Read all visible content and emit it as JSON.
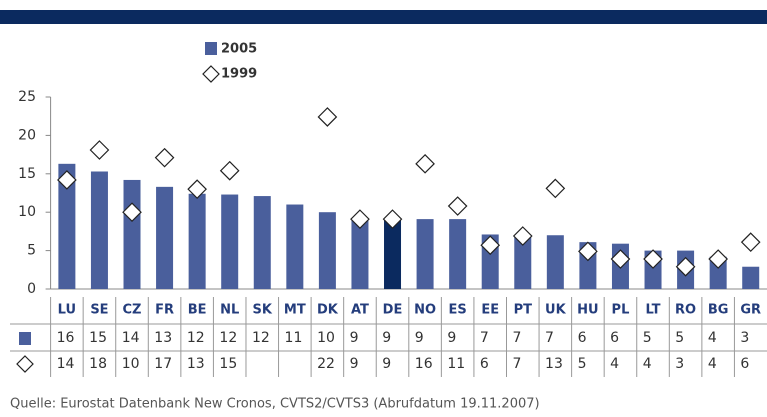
{
  "chart_data": {
    "type": "bar",
    "categories": [
      "LU",
      "SE",
      "CZ",
      "FR",
      "BE",
      "NL",
      "SK",
      "MT",
      "DK",
      "AT",
      "DE",
      "NO",
      "ES",
      "EE",
      "PT",
      "UK",
      "HU",
      "PL",
      "LT",
      "RO",
      "BG",
      "GR"
    ],
    "series": [
      {
        "name": "2005",
        "color": "#4a5f9c",
        "marker": "square",
        "values": [
          16.3,
          15.3,
          14.2,
          13.3,
          12.4,
          12.3,
          12.1,
          11.0,
          10.0,
          9.2,
          9.0,
          9.1,
          9.1,
          7.1,
          7.0,
          7.0,
          6.1,
          5.9,
          5.0,
          5.0,
          4.2,
          2.9
        ],
        "value_labels": [
          "16",
          "15",
          "14",
          "13",
          "12",
          "12",
          "12",
          "11",
          "10",
          "9",
          "9",
          "9",
          "9",
          "7",
          "7",
          "7",
          "6",
          "6",
          "5",
          "5",
          "4",
          "3"
        ]
      },
      {
        "name": "1999",
        "color": "#ffffff",
        "marker": "diamond",
        "values": [
          14.2,
          18.1,
          10.0,
          17.1,
          13.0,
          15.4,
          null,
          null,
          22.4,
          9.1,
          9.1,
          16.3,
          10.8,
          5.7,
          6.9,
          13.1,
          4.9,
          3.9,
          3.9,
          2.9,
          3.9,
          6.1
        ],
        "value_labels": [
          "14",
          "18",
          "10",
          "17",
          "13",
          "15",
          null,
          null,
          "22",
          "9",
          "9",
          "16",
          "11",
          "6",
          "7",
          "13",
          "5",
          "4",
          "4",
          "3",
          "4",
          "6"
        ]
      }
    ],
    "highlight": {
      "category": "DE",
      "color": "#0b2a5f"
    },
    "ylim": [
      0,
      25
    ],
    "yticks": [
      0,
      5,
      10,
      15,
      20,
      25
    ],
    "footnote": "Quelle: Eurostat Datenbank New Cronos, CVTS2/CVTS3 (Abrufdatum 19.11.2007)"
  }
}
